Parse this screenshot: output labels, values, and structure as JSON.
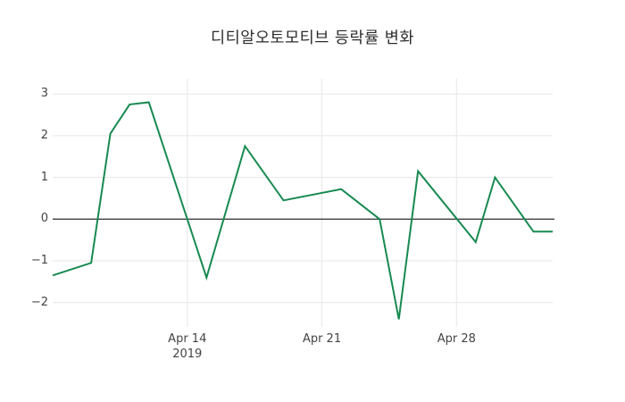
{
  "chart_data": {
    "type": "line",
    "title": "디티알오토모티브 등락률 변화",
    "xlabel": "",
    "ylabel": "",
    "grid": true,
    "legend": "none",
    "zero_line": true,
    "x_range_days": [
      0,
      26
    ],
    "ylim": [
      -2.5,
      3.37
    ],
    "x_ticks": [
      {
        "day": 7,
        "label": "Apr 14",
        "sublabel": "2019"
      },
      {
        "day": 14,
        "label": "Apr 21",
        "sublabel": ""
      },
      {
        "day": 21,
        "label": "Apr 28",
        "sublabel": ""
      }
    ],
    "y_ticks": [
      {
        "value": 3,
        "label": "3"
      },
      {
        "value": 2,
        "label": "2"
      },
      {
        "value": 1,
        "label": "1"
      },
      {
        "value": 0,
        "label": "0"
      },
      {
        "value": -1,
        "label": "−1"
      },
      {
        "value": -2,
        "label": "−2"
      }
    ],
    "series": [
      {
        "color": "#178a50",
        "points": [
          {
            "x_day": 0,
            "date": "Apr 7",
            "y": -1.35
          },
          {
            "x_day": 2,
            "date": "Apr 9",
            "y": -1.05
          },
          {
            "x_day": 3,
            "date": "Apr 10",
            "y": 2.05
          },
          {
            "x_day": 4,
            "date": "Apr 11",
            "y": 2.75
          },
          {
            "x_day": 5,
            "date": "Apr 12",
            "y": 2.8
          },
          {
            "x_day": 8,
            "date": "Apr 15",
            "y": -1.4
          },
          {
            "x_day": 10,
            "date": "Apr 17",
            "y": 1.75
          },
          {
            "x_day": 12,
            "date": "Apr 19",
            "y": 0.45
          },
          {
            "x_day": 15,
            "date": "Apr 22",
            "y": 0.72
          },
          {
            "x_day": 17,
            "date": "Apr 24",
            "y": 0.0
          },
          {
            "x_day": 18,
            "date": "Apr 25",
            "y": -2.4
          },
          {
            "x_day": 19,
            "date": "Apr 26",
            "y": 1.15
          },
          {
            "x_day": 22,
            "date": "Apr 29",
            "y": -0.55
          },
          {
            "x_day": 23,
            "date": "Apr 30",
            "y": 1.0
          },
          {
            "x_day": 25,
            "date": "May 2",
            "y": -0.3
          },
          {
            "x_day": 26,
            "date": "May 3",
            "y": -0.3
          }
        ]
      }
    ],
    "colors": {
      "line": "#178a50",
      "zero_line": "#3f3f3f",
      "grid": "#e7e7e7",
      "background": "#ffffff",
      "text": "#444444",
      "title_text": "#2b2b2b"
    }
  }
}
